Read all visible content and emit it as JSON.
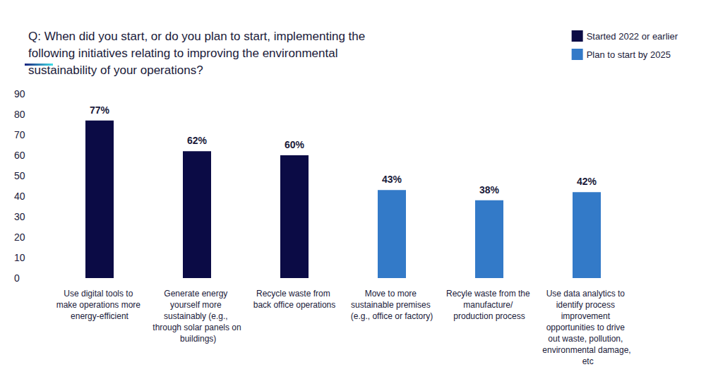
{
  "chart_data": {
    "type": "bar",
    "title": "Q: When did you start, or do you plan to start, implementing the following initiatives relating to improving the environmental sustainability of your operations?",
    "categories": [
      "Use digital tools to make operations more energy-efficient",
      "Generate energy yourself more sustainably (e.g., through solar panels on buildings)",
      "Recycle waste from back office operations",
      "Move to more sustainable premises (e.g., office or factory)",
      "Recyle waste from the manufacture/ production process",
      "Use data analytics to identify process improvement opportunities to drive out waste, pollution, environmental damage, etc"
    ],
    "series": [
      {
        "name": "Started 2022 or earlier",
        "color": "#0b0b45",
        "values": [
          77,
          62,
          60,
          null,
          null,
          null
        ],
        "value_labels": [
          "77%",
          "62%",
          "60%",
          null,
          null,
          null
        ]
      },
      {
        "name": "Plan to start by 2025",
        "color": "#337ac8",
        "values": [
          null,
          null,
          null,
          43,
          38,
          42
        ],
        "value_labels": [
          null,
          null,
          null,
          "43%",
          "38%",
          "42%"
        ]
      }
    ],
    "ylim": [
      0,
      90
    ],
    "yticks": [
      0,
      10,
      20,
      30,
      40,
      50,
      60,
      70,
      80,
      90
    ],
    "grid": false,
    "legend": "upper right",
    "data_labels": true
  }
}
